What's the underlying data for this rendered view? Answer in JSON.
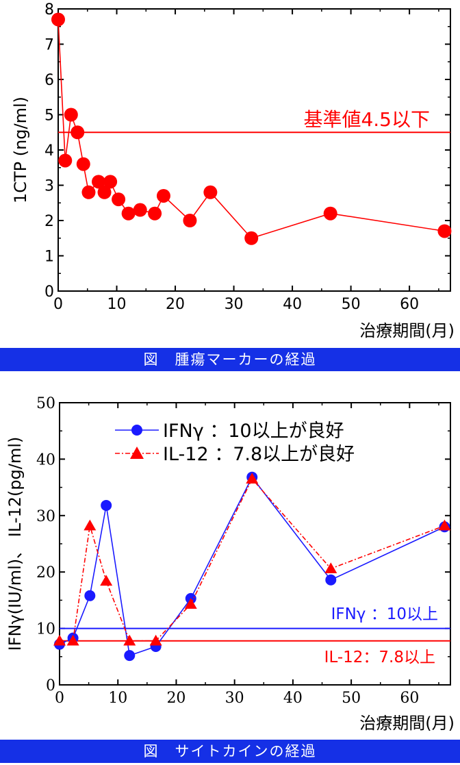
{
  "chart_data": [
    {
      "type": "line",
      "title": "",
      "xlabel": "治療期間(月)",
      "ylabel": "1CTP (ng/ml)",
      "xlim": [
        0,
        67
      ],
      "ylim": [
        0,
        8
      ],
      "xticks": [
        0,
        10,
        20,
        30,
        40,
        50,
        60
      ],
      "yticks": [
        0,
        1,
        2,
        3,
        4,
        5,
        6,
        7,
        8
      ],
      "grid": false,
      "series": [
        {
          "color": "#ff0000",
          "marker": "circle",
          "x": [
            0,
            1.2,
            2.2,
            3.3,
            4.3,
            5.2,
            6.9,
            7.9,
            8.9,
            10.3,
            12,
            14,
            16.5,
            18,
            22.5,
            26,
            33,
            46.5,
            66
          ],
          "y": [
            7.7,
            3.7,
            5.0,
            4.5,
            3.6,
            2.8,
            3.1,
            2.8,
            3.1,
            2.6,
            2.2,
            2.3,
            2.2,
            2.7,
            2.0,
            2.8,
            1.5,
            2.2,
            1.7
          ]
        }
      ],
      "reference_lines": [
        {
          "y": 4.5,
          "label": "基準値4.5以下",
          "color": "#ff0000"
        }
      ]
    },
    {
      "type": "line",
      "title": "",
      "xlabel": "治療期間(月)",
      "ylabel": "IFNγ(IU/ml)、 IL-12(pg/ml)",
      "xlim": [
        0,
        67
      ],
      "ylim": [
        0,
        50
      ],
      "xticks": [
        0,
        10,
        20,
        30,
        40,
        50,
        60
      ],
      "yticks": [
        0,
        10,
        20,
        30,
        40,
        50
      ],
      "grid": false,
      "legend_position": "top-center",
      "series": [
        {
          "name": "IFNγ ：10以上が良好",
          "color": "#1a1aff",
          "marker": "circle",
          "linestyle": "solid",
          "x": [
            0,
            2.3,
            5.2,
            8,
            12,
            16.5,
            22.5,
            33,
            46.5,
            66
          ],
          "y": [
            7.2,
            8.3,
            15.8,
            31.8,
            5.2,
            6.8,
            15.3,
            36.8,
            18.6,
            28.0
          ]
        },
        {
          "name": "IL-12 ：7.8以上が良好",
          "color": "#ff0000",
          "marker": "triangle",
          "linestyle": "dashdot",
          "x": [
            0,
            2.3,
            5.2,
            8,
            12,
            16.5,
            22.5,
            33,
            46.5,
            66
          ],
          "y": [
            7.8,
            7.8,
            28.2,
            18.4,
            7.8,
            7.8,
            14.3,
            36.5,
            20.6,
            28.2
          ]
        }
      ],
      "reference_lines": [
        {
          "y": 10,
          "label": "IFNγ ：10以上",
          "color": "#1a1aff"
        },
        {
          "y": 7.8,
          "label": "IL-12：7.8以上",
          "color": "#ff0000"
        }
      ]
    }
  ],
  "captions": {
    "top": "図　腫瘍マーカーの経過",
    "bottom": "図　サイトカインの経過"
  }
}
